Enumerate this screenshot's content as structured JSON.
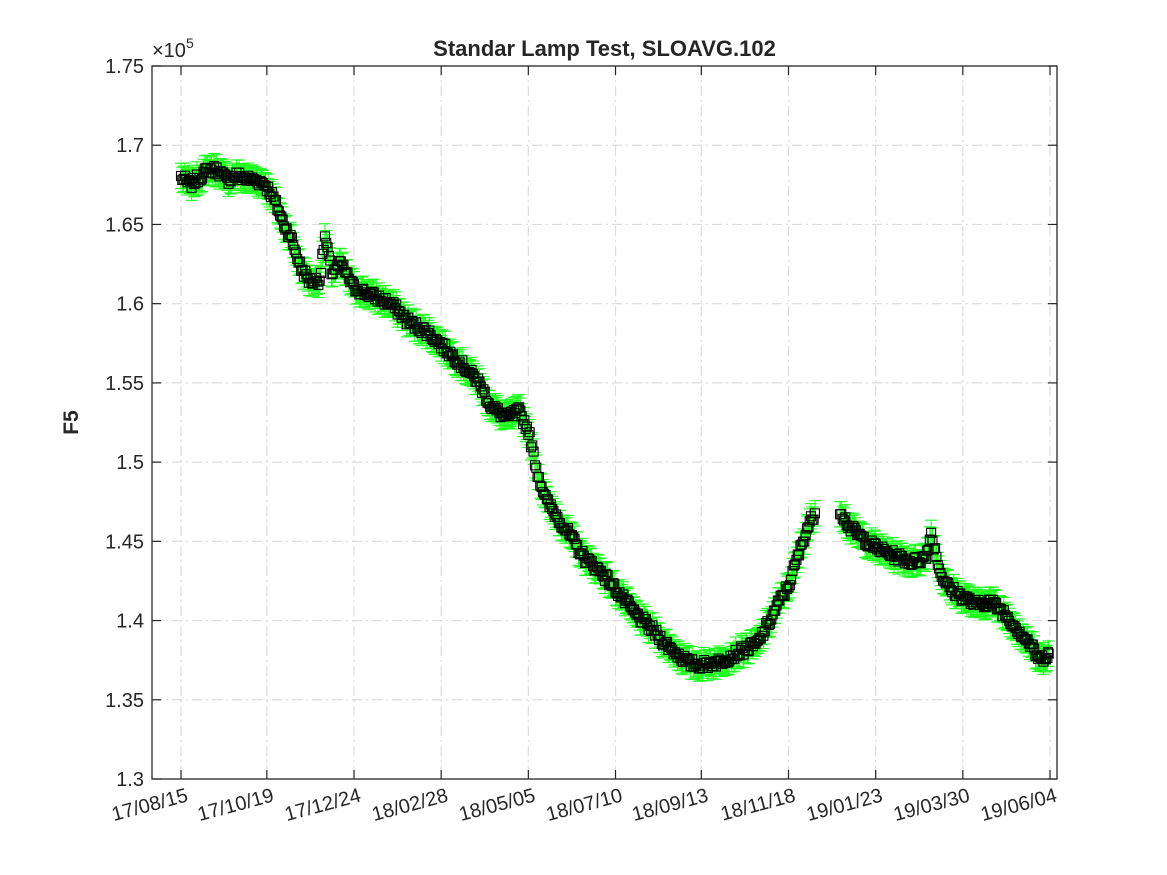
{
  "chart_data": {
    "type": "scatter",
    "title": "Standar Lamp Test, SLOAVG.102",
    "xlabel": "",
    "ylabel": "F5",
    "y_exponent_label": "×10",
    "y_exponent_power": "5",
    "ylim": [
      1.3,
      1.75
    ],
    "xlim": [
      "2017-08-15",
      "2019-06-04"
    ],
    "yticks": [
      1.3,
      1.35,
      1.4,
      1.45,
      1.5,
      1.55,
      1.6,
      1.65,
      1.7,
      1.75
    ],
    "ytick_labels": [
      "1.3",
      "1.35",
      "1.4",
      "1.45",
      "1.5",
      "1.55",
      "1.6",
      "1.65",
      "1.7",
      "1.75"
    ],
    "xticks": [
      "2017-08-15",
      "2017-10-19",
      "2017-12-24",
      "2018-02-28",
      "2018-05-05",
      "2018-07-10",
      "2018-09-13",
      "2018-11-18",
      "2019-01-23",
      "2019-03-30",
      "2019-06-04"
    ],
    "xtick_labels": [
      "17/08/15",
      "17/10/19",
      "17/12/24",
      "18/02/28",
      "18/05/05",
      "18/07/10",
      "18/09/13",
      "18/11/18",
      "19/01/23",
      "19/03/30",
      "19/06/04"
    ],
    "grid": true,
    "marker": "square",
    "marker_color": "#000000",
    "errorbar_color": "#1aff1a",
    "errorbar_halfwidth": 0.008,
    "series": [
      {
        "points": [
          [
            "2017-08-15",
            1.68
          ],
          [
            "2017-08-22",
            1.675
          ],
          [
            "2017-08-29",
            1.68
          ],
          [
            "2017-09-05",
            1.685
          ],
          [
            "2017-09-12",
            1.684
          ],
          [
            "2017-09-19",
            1.678
          ],
          [
            "2017-09-26",
            1.681
          ],
          [
            "2017-10-03",
            1.679
          ],
          [
            "2017-10-10",
            1.678
          ],
          [
            "2017-10-17",
            1.676
          ],
          [
            "2017-10-24",
            1.667
          ],
          [
            "2017-10-31",
            1.652
          ],
          [
            "2017-11-07",
            1.64
          ],
          [
            "2017-11-14",
            1.622
          ],
          [
            "2017-11-21",
            1.614
          ],
          [
            "2017-11-28",
            1.615
          ],
          [
            "2017-12-02",
            1.642
          ],
          [
            "2017-12-07",
            1.62
          ],
          [
            "2017-12-14",
            1.625
          ],
          [
            "2017-12-24",
            1.61
          ],
          [
            "2018-01-07",
            1.605
          ],
          [
            "2018-01-21",
            1.6
          ],
          [
            "2018-02-04",
            1.588
          ],
          [
            "2018-02-18",
            1.582
          ],
          [
            "2018-02-28",
            1.574
          ],
          [
            "2018-03-14",
            1.563
          ],
          [
            "2018-03-28",
            1.551
          ],
          [
            "2018-04-07",
            1.535
          ],
          [
            "2018-04-18",
            1.528
          ],
          [
            "2018-04-28",
            1.532
          ],
          [
            "2018-05-05",
            1.52
          ],
          [
            "2018-05-12",
            1.493
          ],
          [
            "2018-05-19",
            1.475
          ],
          [
            "2018-06-02",
            1.458
          ],
          [
            "2018-06-16",
            1.44
          ],
          [
            "2018-06-30",
            1.43
          ],
          [
            "2018-07-10",
            1.42
          ],
          [
            "2018-07-24",
            1.405
          ],
          [
            "2018-08-07",
            1.394
          ],
          [
            "2018-08-21",
            1.382
          ],
          [
            "2018-09-04",
            1.373
          ],
          [
            "2018-09-13",
            1.372
          ],
          [
            "2018-09-27",
            1.374
          ],
          [
            "2018-10-11",
            1.38
          ],
          [
            "2018-10-25",
            1.385
          ],
          [
            "2018-11-04",
            1.4
          ],
          [
            "2018-11-11",
            1.412
          ],
          [
            "2018-11-18",
            1.422
          ],
          [
            "2018-11-25",
            1.44
          ],
          [
            "2018-12-02",
            1.458
          ],
          [
            "2018-12-09",
            1.47
          ],
          [
            "2018-12-27",
            1.47
          ],
          [
            "2019-01-03",
            1.459
          ],
          [
            "2019-01-13",
            1.452
          ],
          [
            "2019-01-23",
            1.446
          ],
          [
            "2019-02-06",
            1.441
          ],
          [
            "2019-02-20",
            1.437
          ],
          [
            "2019-03-02",
            1.44
          ],
          [
            "2019-03-06",
            1.455
          ],
          [
            "2019-03-13",
            1.43
          ],
          [
            "2019-03-20",
            1.42
          ],
          [
            "2019-03-30",
            1.415
          ],
          [
            "2019-04-09",
            1.41
          ],
          [
            "2019-04-20",
            1.412
          ],
          [
            "2019-04-30",
            1.405
          ],
          [
            "2019-05-10",
            1.395
          ],
          [
            "2019-05-20",
            1.385
          ],
          [
            "2019-05-27",
            1.375
          ],
          [
            "2019-06-04",
            1.38
          ]
        ]
      }
    ]
  }
}
